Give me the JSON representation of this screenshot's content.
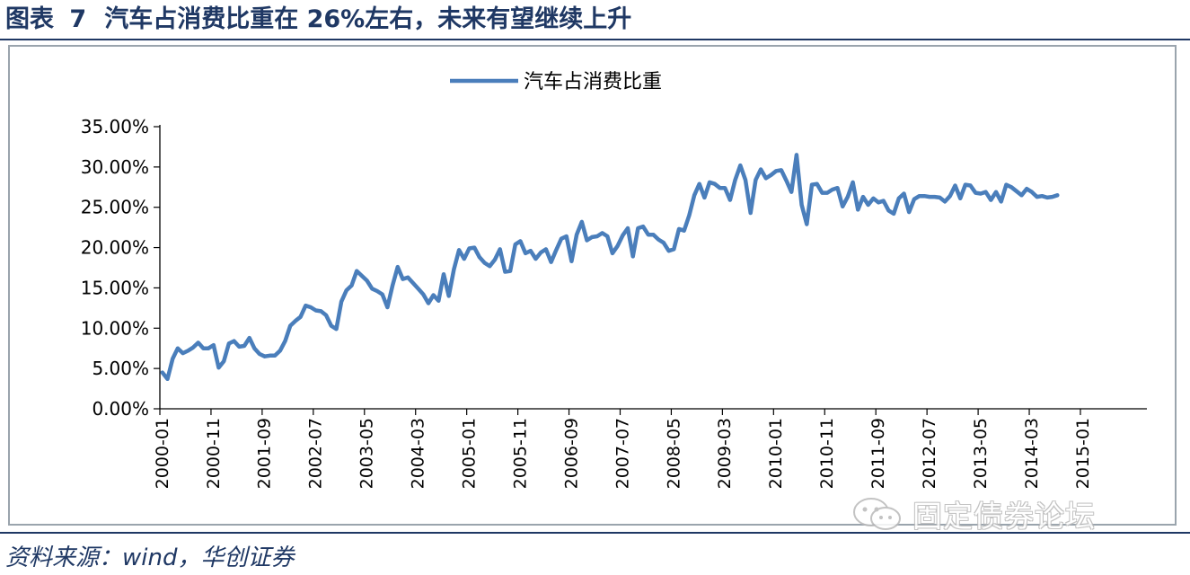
{
  "header": {
    "prefix": "图表",
    "number": "7",
    "title": "汽车占消费比重在 26%左右，未来有望继续上升"
  },
  "footer": {
    "source": "资料来源：wind，华创证券"
  },
  "watermark": {
    "text": "固定债券论坛",
    "icon": "wechat-icon"
  },
  "colors": {
    "series": "#4a7ebb",
    "heading": "#1f3864"
  },
  "chart_data": {
    "type": "line",
    "legend_position": "top-center",
    "grid": false,
    "series": [
      {
        "name": "汽车占消费比重",
        "points": [
          [
            "2000-01",
            4.5
          ],
          [
            "2000-02",
            3.7
          ],
          [
            "2000-03",
            6.2
          ],
          [
            "2000-04",
            7.5
          ],
          [
            "2000-05",
            6.9
          ],
          [
            "2000-06",
            7.2
          ],
          [
            "2000-07",
            7.6
          ],
          [
            "2000-08",
            8.2
          ],
          [
            "2000-09",
            7.5
          ],
          [
            "2000-10",
            7.5
          ],
          [
            "2000-11",
            7.9
          ],
          [
            "2000-12",
            5.1
          ],
          [
            "2001-01",
            5.9
          ],
          [
            "2001-02",
            8.1
          ],
          [
            "2001-03",
            8.4
          ],
          [
            "2001-04",
            7.7
          ],
          [
            "2001-05",
            7.8
          ],
          [
            "2001-06",
            8.8
          ],
          [
            "2001-07",
            7.5
          ],
          [
            "2001-08",
            6.8
          ],
          [
            "2001-09",
            6.5
          ],
          [
            "2001-10",
            6.6
          ],
          [
            "2001-11",
            6.6
          ],
          [
            "2001-12",
            7.2
          ],
          [
            "2002-01",
            8.4
          ],
          [
            "2002-02",
            10.3
          ],
          [
            "2002-03",
            10.9
          ],
          [
            "2002-04",
            11.4
          ],
          [
            "2002-05",
            12.8
          ],
          [
            "2002-06",
            12.6
          ],
          [
            "2002-07",
            12.2
          ],
          [
            "2002-08",
            12.1
          ],
          [
            "2002-09",
            11.6
          ],
          [
            "2002-10",
            10.3
          ],
          [
            "2002-11",
            9.9
          ],
          [
            "2002-12",
            13.3
          ],
          [
            "2003-01",
            14.7
          ],
          [
            "2003-02",
            15.3
          ],
          [
            "2003-03",
            17.1
          ],
          [
            "2003-04",
            16.5
          ],
          [
            "2003-05",
            15.9
          ],
          [
            "2003-06",
            14.9
          ],
          [
            "2003-07",
            14.6
          ],
          [
            "2003-08",
            14.2
          ],
          [
            "2003-09",
            12.6
          ],
          [
            "2003-10",
            15.3
          ],
          [
            "2003-11",
            17.6
          ],
          [
            "2003-12",
            16.1
          ],
          [
            "2004-01",
            16.3
          ],
          [
            "2004-02",
            15.6
          ],
          [
            "2004-03",
            14.9
          ],
          [
            "2004-04",
            14.2
          ],
          [
            "2004-05",
            13.1
          ],
          [
            "2004-06",
            14.1
          ],
          [
            "2004-07",
            13.4
          ],
          [
            "2004-08",
            16.7
          ],
          [
            "2004-09",
            14.0
          ],
          [
            "2004-10",
            17.3
          ],
          [
            "2004-11",
            19.7
          ],
          [
            "2004-12",
            18.6
          ],
          [
            "2005-01",
            19.9
          ],
          [
            "2005-02",
            20.0
          ],
          [
            "2005-03",
            18.8
          ],
          [
            "2005-04",
            18.1
          ],
          [
            "2005-05",
            17.7
          ],
          [
            "2005-06",
            18.5
          ],
          [
            "2005-07",
            19.8
          ],
          [
            "2005-08",
            17.0
          ],
          [
            "2005-09",
            17.1
          ],
          [
            "2005-10",
            20.4
          ],
          [
            "2005-11",
            20.8
          ],
          [
            "2005-12",
            19.3
          ],
          [
            "2006-01",
            19.6
          ],
          [
            "2006-02",
            18.6
          ],
          [
            "2006-03",
            19.4
          ],
          [
            "2006-04",
            19.8
          ],
          [
            "2006-05",
            18.2
          ],
          [
            "2006-06",
            19.7
          ],
          [
            "2006-07",
            21.1
          ],
          [
            "2006-08",
            21.4
          ],
          [
            "2006-09",
            18.3
          ],
          [
            "2006-10",
            21.6
          ],
          [
            "2006-11",
            23.2
          ],
          [
            "2006-12",
            20.9
          ],
          [
            "2007-01",
            21.3
          ],
          [
            "2007-02",
            21.4
          ],
          [
            "2007-03",
            21.8
          ],
          [
            "2007-04",
            21.4
          ],
          [
            "2007-05",
            19.3
          ],
          [
            "2007-06",
            20.2
          ],
          [
            "2007-07",
            21.5
          ],
          [
            "2007-08",
            22.4
          ],
          [
            "2007-09",
            18.9
          ],
          [
            "2007-10",
            22.4
          ],
          [
            "2007-11",
            22.6
          ],
          [
            "2007-12",
            21.6
          ],
          [
            "2008-01",
            21.6
          ],
          [
            "2008-02",
            21.0
          ],
          [
            "2008-03",
            20.6
          ],
          [
            "2008-04",
            19.6
          ],
          [
            "2008-05",
            19.8
          ],
          [
            "2008-06",
            22.3
          ],
          [
            "2008-07",
            22.1
          ],
          [
            "2008-08",
            24.0
          ],
          [
            "2008-09",
            26.5
          ],
          [
            "2008-10",
            27.9
          ],
          [
            "2008-11",
            26.2
          ],
          [
            "2008-12",
            28.1
          ],
          [
            "2009-01",
            27.9
          ],
          [
            "2009-02",
            27.4
          ],
          [
            "2009-03",
            27.4
          ],
          [
            "2009-04",
            25.9
          ],
          [
            "2009-05",
            28.4
          ],
          [
            "2009-06",
            30.2
          ],
          [
            "2009-07",
            28.4
          ],
          [
            "2009-08",
            24.3
          ],
          [
            "2009-09",
            28.4
          ],
          [
            "2009-10",
            29.7
          ],
          [
            "2009-11",
            28.6
          ],
          [
            "2009-12",
            29.0
          ],
          [
            "2010-01",
            29.5
          ],
          [
            "2010-02",
            29.6
          ],
          [
            "2010-03",
            28.3
          ],
          [
            "2010-04",
            26.9
          ],
          [
            "2010-05",
            31.5
          ],
          [
            "2010-06",
            25.3
          ],
          [
            "2010-07",
            22.9
          ],
          [
            "2010-08",
            27.8
          ],
          [
            "2010-09",
            27.9
          ],
          [
            "2010-10",
            26.8
          ],
          [
            "2010-11",
            26.8
          ],
          [
            "2010-12",
            27.2
          ],
          [
            "2011-01",
            27.4
          ],
          [
            "2011-02",
            25.1
          ],
          [
            "2011-03",
            26.3
          ],
          [
            "2011-04",
            28.1
          ],
          [
            "2011-05",
            24.7
          ],
          [
            "2011-06",
            26.3
          ],
          [
            "2011-07",
            25.3
          ],
          [
            "2011-08",
            26.1
          ],
          [
            "2011-09",
            25.6
          ],
          [
            "2011-10",
            25.8
          ],
          [
            "2011-11",
            24.6
          ],
          [
            "2011-12",
            24.2
          ],
          [
            "2012-01",
            26.1
          ],
          [
            "2012-02",
            26.7
          ],
          [
            "2012-03",
            24.4
          ],
          [
            "2012-04",
            26.0
          ],
          [
            "2012-05",
            26.4
          ],
          [
            "2012-06",
            26.4
          ],
          [
            "2012-07",
            26.3
          ],
          [
            "2012-08",
            26.3
          ],
          [
            "2012-09",
            26.2
          ],
          [
            "2012-10",
            25.7
          ],
          [
            "2012-11",
            26.4
          ],
          [
            "2012-12",
            27.7
          ],
          [
            "2013-01",
            26.1
          ],
          [
            "2013-02",
            27.8
          ],
          [
            "2013-03",
            27.7
          ],
          [
            "2013-04",
            26.8
          ],
          [
            "2013-05",
            26.7
          ],
          [
            "2013-06",
            26.9
          ],
          [
            "2013-07",
            25.9
          ],
          [
            "2013-08",
            26.9
          ],
          [
            "2013-09",
            25.7
          ],
          [
            "2013-10",
            27.8
          ],
          [
            "2013-11",
            27.5
          ],
          [
            "2013-12",
            27.0
          ],
          [
            "2014-01",
            26.5
          ],
          [
            "2014-02",
            27.3
          ],
          [
            "2014-03",
            26.9
          ],
          [
            "2014-04",
            26.3
          ],
          [
            "2014-05",
            26.4
          ],
          [
            "2014-06",
            26.2
          ],
          [
            "2014-07",
            26.3
          ],
          [
            "2014-08",
            26.5
          ]
        ]
      }
    ],
    "x_tick_labels": [
      "2000-01",
      "2000-11",
      "2001-09",
      "2002-07",
      "2003-05",
      "2004-03",
      "2005-01",
      "2005-11",
      "2006-09",
      "2007-07",
      "2008-05",
      "2009-03",
      "2010-01",
      "2010-11",
      "2011-09",
      "2012-07",
      "2013-05",
      "2014-03",
      "2015-01"
    ],
    "y_ticks": [
      0,
      5,
      10,
      15,
      20,
      25,
      30,
      35
    ],
    "y_tick_labels": [
      "0.00%",
      "5.00%",
      "10.00%",
      "15.00%",
      "20.00%",
      "25.00%",
      "30.00%",
      "35.00%"
    ],
    "ylim": [
      0,
      35
    ]
  }
}
